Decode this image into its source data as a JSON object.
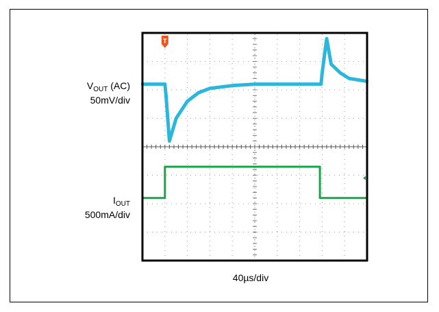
{
  "labels": {
    "vout_main": "V",
    "vout_sub": "OUT",
    "vout_suffix": " (AC)",
    "vout_scale": "50mV/div",
    "iout_main": "I",
    "iout_sub": "OUT",
    "iout_scale": "500mA/div",
    "time_scale": "40µs/div",
    "trigger_marker": "T"
  },
  "colors": {
    "vout_trace": "#2bb6dc",
    "iout_trace": "#1aa34a",
    "trigger": "#e8571e",
    "grid": "#9a9a9a"
  },
  "chart_data": {
    "type": "line",
    "x_unit": "div",
    "y_unit": "div",
    "x_range": [
      0,
      10
    ],
    "y_range": [
      0,
      8
    ],
    "grid": true,
    "divisions_x": 10,
    "divisions_y": 8,
    "series": [
      {
        "name": "VOUT (AC)",
        "x": [
          0,
          1.0,
          1.05,
          1.2,
          1.5,
          2.0,
          2.5,
          3.0,
          4.0,
          5.0,
          6.0,
          7.0,
          7.95,
          8.0,
          8.2,
          8.4,
          8.8,
          9.2,
          10
        ],
        "y": [
          6.2,
          6.2,
          5.8,
          4.2,
          5.0,
          5.6,
          5.9,
          6.05,
          6.15,
          6.2,
          6.2,
          6.2,
          6.2,
          6.6,
          7.8,
          6.9,
          6.6,
          6.4,
          6.3
        ]
      },
      {
        "name": "IOUT",
        "x": [
          0,
          1.0,
          1.0,
          7.9,
          7.9,
          10
        ],
        "y": [
          2.2,
          2.2,
          3.3,
          3.3,
          2.2,
          2.2
        ]
      }
    ]
  }
}
